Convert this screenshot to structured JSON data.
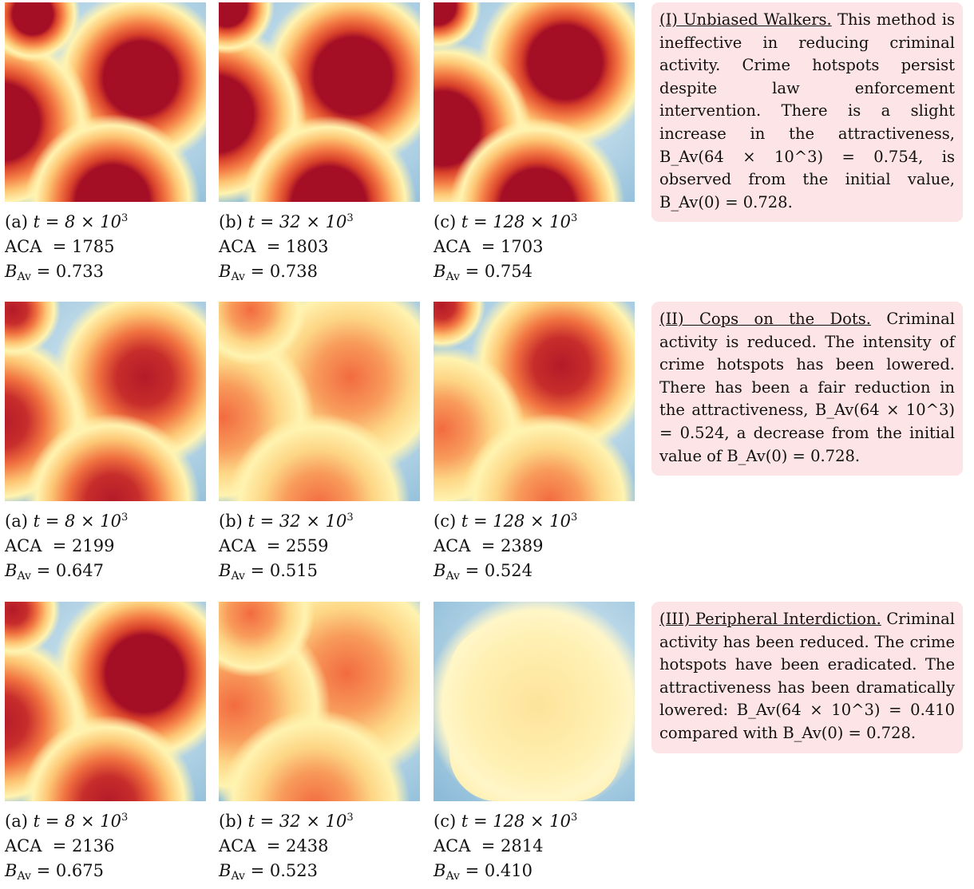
{
  "rows": [
    {
      "id": "I",
      "note": {
        "title": "(I) Unbiased Walkers.",
        "text": "This method is ineffective in reducing criminal activity. Crime hotspots persist despite law enforcement intervention. There is a slight increase in the attractiveness, B_Av(64 × 10^3) = 0.754, is observed from the initial value, B_Av(0) = 0.728."
      },
      "panels": [
        {
          "label": "(a)",
          "t_text": "t = 8 × 10",
          "t_exp": "3",
          "aca_label": "ACA",
          "aca": "= 1785",
          "bav_label": "B",
          "bav_sub": "Av",
          "bav": "= 0.733"
        },
        {
          "label": "(b)",
          "t_text": "t = 32 × 10",
          "t_exp": "3",
          "aca_label": "ACA",
          "aca": "= 1803",
          "bav_label": "B",
          "bav_sub": "Av",
          "bav": "= 0.738"
        },
        {
          "label": "(c)",
          "t_text": "t = 128 × 10",
          "t_exp": "3",
          "aca_label": "ACA",
          "aca": "= 1703",
          "bav_label": "B",
          "bav_sub": "Av",
          "bav": "= 0.754"
        }
      ]
    },
    {
      "id": "II",
      "note": {
        "title": "(II) Cops on the Dots.",
        "text": "Criminal activity is reduced. The intensity of crime hotspots has been lowered. There has been a fair reduction in the attractiveness, B_Av(64 × 10^3) = 0.524, a decrease from the initial value of B_Av(0) = 0.728."
      },
      "panels": [
        {
          "label": "(a)",
          "t_text": "t = 8 × 10",
          "t_exp": "3",
          "aca_label": "ACA",
          "aca": "= 2199",
          "bav_label": "B",
          "bav_sub": "Av",
          "bav": "= 0.647"
        },
        {
          "label": "(b)",
          "t_text": "t = 32 × 10",
          "t_exp": "3",
          "aca_label": "ACA",
          "aca": "= 2559",
          "bav_label": "B",
          "bav_sub": "Av",
          "bav": "= 0.515"
        },
        {
          "label": "(c)",
          "t_text": "t = 128 × 10",
          "t_exp": "3",
          "aca_label": "ACA",
          "aca": "= 2389",
          "bav_label": "B",
          "bav_sub": "Av",
          "bav": "= 0.524"
        }
      ]
    },
    {
      "id": "III",
      "note": {
        "title": "(III) Peripheral Interdiction.",
        "text": "Criminal activity has been reduced. The crime hotspots have been eradicated. The attractiveness has been dramatically lowered: B_Av(64 × 10^3) = 0.410 compared with B_Av(0) = 0.728."
      },
      "panels": [
        {
          "label": "(a)",
          "t_text": "t = 8 × 10",
          "t_exp": "3",
          "aca_label": "ACA",
          "aca": "= 2136",
          "bav_label": "B",
          "bav_sub": "Av",
          "bav": "= 0.675"
        },
        {
          "label": "(b)",
          "t_text": "t = 32 × 10",
          "t_exp": "3",
          "aca_label": "ACA",
          "aca": "= 2438",
          "bav_label": "B",
          "bav_sub": "Av",
          "bav": "= 0.523"
        },
        {
          "label": "(c)",
          "t_text": "t = 128 × 10",
          "t_exp": "3",
          "aca_label": "ACA",
          "aca": "= 2814",
          "bav_label": "B",
          "bav_sub": "Av",
          "bav": "= 0.410"
        }
      ]
    }
  ],
  "colors": {
    "background_blue": "#9cc6de",
    "halo_yellow": "#fff3b0",
    "hotspot_red": "#a50f26",
    "note_background": "#fde4e6"
  }
}
